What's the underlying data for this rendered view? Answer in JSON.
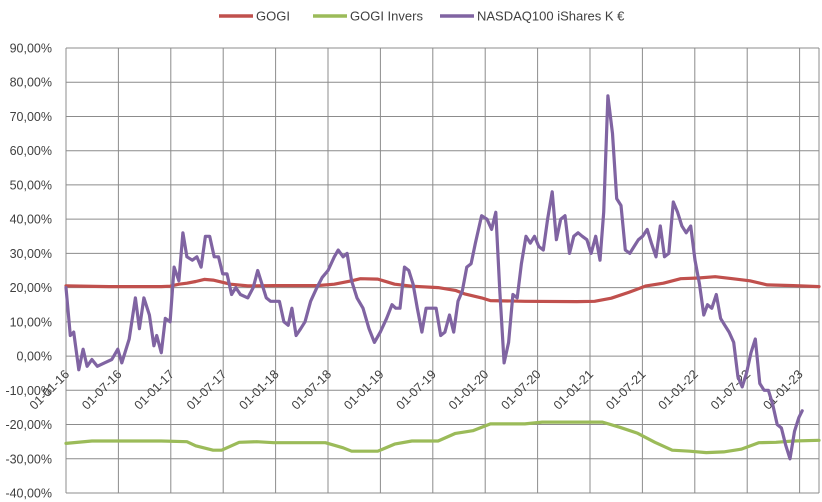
{
  "chart_data": {
    "type": "line",
    "title": "",
    "xlabel": "",
    "ylabel": "",
    "ylim": [
      -40,
      90
    ],
    "y_ticks": [
      "90,00%",
      "80,00%",
      "70,00%",
      "60,00%",
      "50,00%",
      "40,00%",
      "30,00%",
      "20,00%",
      "10,00%",
      "0,00%",
      "-10,00%",
      "-20,00%",
      "-30,00%",
      "-40,00%"
    ],
    "x_ticks": [
      "01-01-16",
      "01-07-16",
      "01-01-17",
      "01-07-17",
      "01-01-18",
      "01-07-18",
      "01-01-19",
      "01-07-19",
      "01-01-20",
      "01-07-20",
      "01-01-21",
      "01-07-21",
      "01-01-22",
      "01-07-22",
      "01-01-23"
    ],
    "x_range": [
      "2016-01-01",
      "2023-04-01"
    ],
    "grid": true,
    "legend_position": "top",
    "series": [
      {
        "name": "GOGI",
        "color": "#c0504d",
        "points": [
          [
            "2016-01-01",
            20.5
          ],
          [
            "2016-06-01",
            20.3
          ],
          [
            "2016-12-01",
            20.3
          ],
          [
            "2017-01-01",
            20.4
          ],
          [
            "2017-02-01",
            21.0
          ],
          [
            "2017-03-01",
            21.3
          ],
          [
            "2017-04-01",
            21.8
          ],
          [
            "2017-05-01",
            22.4
          ],
          [
            "2017-06-01",
            22.2
          ],
          [
            "2017-08-01",
            21.0
          ],
          [
            "2017-10-01",
            20.5
          ],
          [
            "2018-01-01",
            20.6
          ],
          [
            "2018-06-01",
            20.6
          ],
          [
            "2018-08-01",
            21.0
          ],
          [
            "2018-10-01",
            22.0
          ],
          [
            "2018-11-01",
            22.6
          ],
          [
            "2019-01-01",
            22.5
          ],
          [
            "2019-03-01",
            21.0
          ],
          [
            "2019-05-01",
            20.4
          ],
          [
            "2019-08-01",
            20.0
          ],
          [
            "2019-10-01",
            19.2
          ],
          [
            "2019-11-01",
            18.2
          ],
          [
            "2020-01-01",
            17.0
          ],
          [
            "2020-02-01",
            16.2
          ],
          [
            "2020-06-01",
            16.0
          ],
          [
            "2020-12-01",
            15.9
          ],
          [
            "2021-02-01",
            16.0
          ],
          [
            "2021-04-01",
            16.9
          ],
          [
            "2021-06-01",
            18.6
          ],
          [
            "2021-08-01",
            20.5
          ],
          [
            "2021-10-01",
            21.3
          ],
          [
            "2021-12-01",
            22.6
          ],
          [
            "2022-02-01",
            22.8
          ],
          [
            "2022-04-01",
            23.2
          ],
          [
            "2022-06-01",
            22.6
          ],
          [
            "2022-08-01",
            22.0
          ],
          [
            "2022-10-01",
            20.8
          ],
          [
            "2023-01-01",
            20.6
          ],
          [
            "2023-04-01",
            20.3
          ]
        ]
      },
      {
        "name": "GOGI Invers",
        "color": "#9bbb59",
        "points": [
          [
            "2016-01-01",
            -25.5
          ],
          [
            "2016-04-01",
            -24.8
          ],
          [
            "2016-12-01",
            -24.8
          ],
          [
            "2017-03-01",
            -25.0
          ],
          [
            "2017-04-01",
            -26.2
          ],
          [
            "2017-06-01",
            -27.5
          ],
          [
            "2017-07-01",
            -27.5
          ],
          [
            "2017-09-01",
            -25.2
          ],
          [
            "2017-11-01",
            -25.0
          ],
          [
            "2018-01-01",
            -25.3
          ],
          [
            "2018-04-01",
            -25.3
          ],
          [
            "2018-07-01",
            -25.3
          ],
          [
            "2018-09-01",
            -26.8
          ],
          [
            "2018-10-01",
            -27.8
          ],
          [
            "2019-01-01",
            -27.8
          ],
          [
            "2019-03-01",
            -25.7
          ],
          [
            "2019-05-01",
            -24.8
          ],
          [
            "2019-08-01",
            -24.8
          ],
          [
            "2019-10-01",
            -22.6
          ],
          [
            "2019-12-01",
            -21.8
          ],
          [
            "2020-02-01",
            -19.8
          ],
          [
            "2020-06-01",
            -19.8
          ],
          [
            "2020-08-01",
            -19.3
          ],
          [
            "2020-12-01",
            -19.3
          ],
          [
            "2021-03-01",
            -19.3
          ],
          [
            "2021-05-01",
            -20.8
          ],
          [
            "2021-07-01",
            -22.5
          ],
          [
            "2021-09-01",
            -25.2
          ],
          [
            "2021-11-01",
            -27.5
          ],
          [
            "2022-01-01",
            -27.8
          ],
          [
            "2022-03-01",
            -28.2
          ],
          [
            "2022-05-01",
            -28.0
          ],
          [
            "2022-07-01",
            -27.2
          ],
          [
            "2022-09-01",
            -25.3
          ],
          [
            "2022-11-01",
            -25.2
          ],
          [
            "2023-01-01",
            -24.8
          ],
          [
            "2023-04-01",
            -24.6
          ]
        ]
      },
      {
        "name": "NASDAQ100 iShares K €",
        "color": "#8064a2",
        "points": [
          [
            "2016-01-01",
            20
          ],
          [
            "2016-01-16",
            6
          ],
          [
            "2016-01-28",
            7
          ],
          [
            "2016-02-15",
            -4
          ],
          [
            "2016-03-01",
            2
          ],
          [
            "2016-03-15",
            -3
          ],
          [
            "2016-04-01",
            -1
          ],
          [
            "2016-04-20",
            -3
          ],
          [
            "2016-05-15",
            -2
          ],
          [
            "2016-06-10",
            -1
          ],
          [
            "2016-07-01",
            2
          ],
          [
            "2016-07-15",
            -2
          ],
          [
            "2016-08-10",
            5
          ],
          [
            "2016-09-01",
            17
          ],
          [
            "2016-09-15",
            8
          ],
          [
            "2016-10-01",
            17
          ],
          [
            "2016-10-20",
            12
          ],
          [
            "2016-11-05",
            3
          ],
          [
            "2016-11-15",
            6
          ],
          [
            "2016-12-01",
            1
          ],
          [
            "2016-12-15",
            11
          ],
          [
            "2017-01-01",
            10
          ],
          [
            "2017-01-15",
            26
          ],
          [
            "2017-02-01",
            22
          ],
          [
            "2017-02-15",
            36
          ],
          [
            "2017-03-01",
            29
          ],
          [
            "2017-03-20",
            28
          ],
          [
            "2017-04-05",
            29
          ],
          [
            "2017-04-20",
            26
          ],
          [
            "2017-05-05",
            35
          ],
          [
            "2017-05-20",
            35
          ],
          [
            "2017-06-05",
            29
          ],
          [
            "2017-06-20",
            29
          ],
          [
            "2017-07-05",
            24
          ],
          [
            "2017-07-20",
            24
          ],
          [
            "2017-08-05",
            18
          ],
          [
            "2017-08-20",
            20
          ],
          [
            "2017-09-05",
            18
          ],
          [
            "2017-10-01",
            17
          ],
          [
            "2017-10-20",
            20
          ],
          [
            "2017-11-05",
            25
          ],
          [
            "2017-11-20",
            21
          ],
          [
            "2017-12-05",
            17
          ],
          [
            "2017-12-20",
            16
          ],
          [
            "2018-01-05",
            16
          ],
          [
            "2018-01-20",
            16
          ],
          [
            "2018-02-05",
            10
          ],
          [
            "2018-02-20",
            9
          ],
          [
            "2018-03-05",
            14
          ],
          [
            "2018-03-20",
            6
          ],
          [
            "2018-04-05",
            8
          ],
          [
            "2018-04-20",
            10
          ],
          [
            "2018-05-10",
            16
          ],
          [
            "2018-06-01",
            20
          ],
          [
            "2018-06-20",
            23
          ],
          [
            "2018-07-10",
            25
          ],
          [
            "2018-08-01",
            29
          ],
          [
            "2018-08-15",
            31
          ],
          [
            "2018-09-01",
            29
          ],
          [
            "2018-09-15",
            30
          ],
          [
            "2018-10-01",
            22
          ],
          [
            "2018-10-20",
            17
          ],
          [
            "2018-11-10",
            14
          ],
          [
            "2018-12-01",
            8
          ],
          [
            "2018-12-20",
            4
          ],
          [
            "2019-01-10",
            7
          ],
          [
            "2019-02-01",
            11
          ],
          [
            "2019-02-20",
            15
          ],
          [
            "2019-03-05",
            14
          ],
          [
            "2019-03-20",
            14
          ],
          [
            "2019-04-05",
            26
          ],
          [
            "2019-04-20",
            25
          ],
          [
            "2019-05-05",
            21
          ],
          [
            "2019-05-20",
            14
          ],
          [
            "2019-06-05",
            7
          ],
          [
            "2019-06-20",
            14
          ],
          [
            "2019-07-10",
            14
          ],
          [
            "2019-07-25",
            14
          ],
          [
            "2019-08-10",
            6
          ],
          [
            "2019-08-25",
            7
          ],
          [
            "2019-09-10",
            12
          ],
          [
            "2019-09-25",
            7
          ],
          [
            "2019-10-10",
            16
          ],
          [
            "2019-10-25",
            19
          ],
          [
            "2019-11-10",
            26
          ],
          [
            "2019-11-25",
            27
          ],
          [
            "2019-12-10",
            33
          ],
          [
            "2020-01-01",
            41
          ],
          [
            "2020-01-20",
            40
          ],
          [
            "2020-02-05",
            37
          ],
          [
            "2020-02-20",
            42
          ],
          [
            "2020-03-05",
            19
          ],
          [
            "2020-03-20",
            -2
          ],
          [
            "2020-04-05",
            4
          ],
          [
            "2020-04-20",
            18
          ],
          [
            "2020-05-05",
            17
          ],
          [
            "2020-05-20",
            27
          ],
          [
            "2020-06-05",
            35
          ],
          [
            "2020-06-20",
            33
          ],
          [
            "2020-07-05",
            35
          ],
          [
            "2020-07-20",
            32
          ],
          [
            "2020-08-05",
            31
          ],
          [
            "2020-08-20",
            40
          ],
          [
            "2020-09-05",
            48
          ],
          [
            "2020-09-20",
            34
          ],
          [
            "2020-10-05",
            40
          ],
          [
            "2020-10-20",
            41
          ],
          [
            "2020-11-05",
            30
          ],
          [
            "2020-11-20",
            35
          ],
          [
            "2020-12-05",
            36
          ],
          [
            "2020-12-20",
            35
          ],
          [
            "2021-01-05",
            34
          ],
          [
            "2021-01-20",
            30
          ],
          [
            "2021-02-05",
            35
          ],
          [
            "2021-02-20",
            28
          ],
          [
            "2021-03-05",
            42
          ],
          [
            "2021-03-20",
            76
          ],
          [
            "2021-04-05",
            65
          ],
          [
            "2021-04-20",
            46
          ],
          [
            "2021-05-05",
            44
          ],
          [
            "2021-05-20",
            31
          ],
          [
            "2021-06-05",
            30
          ],
          [
            "2021-06-20",
            32
          ],
          [
            "2021-07-05",
            34
          ],
          [
            "2021-07-20",
            35
          ],
          [
            "2021-08-05",
            37
          ],
          [
            "2021-08-20",
            33
          ],
          [
            "2021-09-05",
            29
          ],
          [
            "2021-09-20",
            38
          ],
          [
            "2021-10-05",
            29
          ],
          [
            "2021-10-20",
            30
          ],
          [
            "2021-11-05",
            45
          ],
          [
            "2021-11-20",
            42
          ],
          [
            "2021-12-05",
            38
          ],
          [
            "2021-12-20",
            36
          ],
          [
            "2022-01-05",
            38
          ],
          [
            "2022-01-20",
            28
          ],
          [
            "2022-02-05",
            21
          ],
          [
            "2022-02-20",
            12
          ],
          [
            "2022-03-05",
            15
          ],
          [
            "2022-03-20",
            14
          ],
          [
            "2022-04-05",
            18
          ],
          [
            "2022-04-20",
            11
          ],
          [
            "2022-05-05",
            9
          ],
          [
            "2022-05-20",
            7
          ],
          [
            "2022-06-05",
            4
          ],
          [
            "2022-06-20",
            -6
          ],
          [
            "2022-07-05",
            -9
          ],
          [
            "2022-07-20",
            -5
          ],
          [
            "2022-08-05",
            1
          ],
          [
            "2022-08-20",
            5
          ],
          [
            "2022-09-05",
            -8
          ],
          [
            "2022-09-20",
            -10
          ],
          [
            "2022-10-05",
            -10
          ],
          [
            "2022-10-20",
            -14
          ],
          [
            "2022-11-05",
            -20
          ],
          [
            "2022-11-20",
            -21
          ],
          [
            "2022-12-05",
            -26
          ],
          [
            "2022-12-20",
            -30
          ],
          [
            "2023-01-05",
            -22
          ],
          [
            "2023-01-20",
            -18
          ],
          [
            "2023-02-01",
            -16
          ]
        ]
      }
    ]
  }
}
